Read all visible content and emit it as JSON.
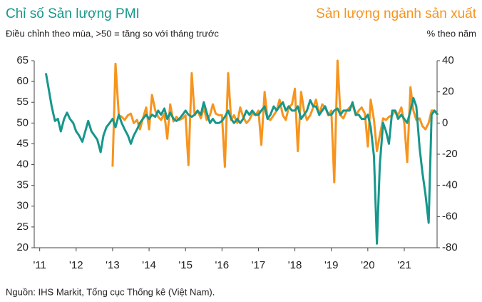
{
  "chart_data": {
    "type": "line",
    "title": "Chỉ số Sản lượng PMI",
    "subtitle": "Điều chỉnh theo mùa, >50 = tăng so với tháng trước",
    "y2_title": "Sản lượng ngành sản xuất",
    "y2_label": "% theo năm",
    "source": "Nguồn: IHS Markit, Tổng cục Thống kê (Việt Nam).",
    "x": [
      2011.17,
      2011.25,
      2011.33,
      2011.42,
      2011.5,
      2011.58,
      2011.67,
      2011.75,
      2011.83,
      2011.92,
      2012,
      2012.08,
      2012.17,
      2012.25,
      2012.33,
      2012.42,
      2012.5,
      2012.58,
      2012.67,
      2012.75,
      2012.83,
      2012.92,
      2013,
      2013.08,
      2013.17,
      2013.25,
      2013.33,
      2013.42,
      2013.5,
      2013.58,
      2013.67,
      2013.75,
      2013.83,
      2013.92,
      2014,
      2014.08,
      2014.17,
      2014.25,
      2014.33,
      2014.42,
      2014.5,
      2014.58,
      2014.67,
      2014.75,
      2014.83,
      2014.92,
      2015,
      2015.08,
      2015.17,
      2015.25,
      2015.33,
      2015.42,
      2015.5,
      2015.58,
      2015.67,
      2015.75,
      2015.83,
      2015.92,
      2016,
      2016.08,
      2016.17,
      2016.25,
      2016.33,
      2016.42,
      2016.5,
      2016.58,
      2016.67,
      2016.75,
      2016.83,
      2016.92,
      2017,
      2017.08,
      2017.17,
      2017.25,
      2017.33,
      2017.42,
      2017.5,
      2017.58,
      2017.67,
      2017.75,
      2017.83,
      2017.92,
      2018,
      2018.08,
      2018.17,
      2018.25,
      2018.33,
      2018.42,
      2018.5,
      2018.58,
      2018.67,
      2018.75,
      2018.83,
      2018.92,
      2019,
      2019.08,
      2019.17,
      2019.25,
      2019.33,
      2019.42,
      2019.5,
      2019.58,
      2019.67,
      2019.75,
      2019.83,
      2019.92,
      2020,
      2020.08,
      2020.17,
      2020.25,
      2020.33,
      2020.42,
      2020.5,
      2020.58,
      2020.67,
      2020.75,
      2020.83,
      2020.92,
      2021,
      2021.08,
      2021.17,
      2021.25,
      2021.33,
      2021.42,
      2021.5,
      2021.58,
      2021.67,
      2021.75,
      2021.83,
      2021.92
    ],
    "series": [
      {
        "name": "Chỉ số Sản lượng PMI",
        "color": "#17978b",
        "axis": "y",
        "values": [
          62,
          58,
          54,
          50.5,
          51,
          48,
          51,
          52.5,
          51,
          50,
          48,
          47,
          45.5,
          48,
          50.5,
          48,
          47,
          46,
          43,
          47,
          49,
          50,
          51,
          49,
          52,
          50,
          48.5,
          47,
          45,
          47,
          48.5,
          50,
          51,
          52,
          51,
          52,
          51.5,
          53,
          52,
          53.5,
          51,
          52.5,
          51,
          50.5,
          51,
          52,
          53,
          52,
          51.5,
          52,
          53,
          52,
          55,
          52.5,
          50,
          51,
          50,
          50,
          50.5,
          51.5,
          53,
          51,
          50,
          51,
          50,
          51,
          53,
          52,
          53,
          52,
          52,
          53,
          54,
          51,
          52,
          54,
          53,
          54,
          55,
          53,
          54,
          53,
          53,
          54,
          51,
          52,
          53,
          55.5,
          54,
          54,
          52,
          53,
          54,
          52,
          52,
          53,
          53.5,
          52,
          53,
          53,
          53,
          55,
          52,
          52,
          51,
          51,
          52,
          49,
          42,
          21,
          40,
          50,
          48,
          45,
          53,
          53,
          51,
          52,
          51,
          50,
          53,
          56,
          54,
          44,
          38,
          33,
          26,
          52,
          53,
          52
        ]
      },
      {
        "name": "Sản lượng ngành sản xuất",
        "color": "#f7941d",
        "axis": "y2",
        "values": [
          null,
          null,
          null,
          null,
          null,
          null,
          null,
          null,
          null,
          null,
          null,
          null,
          null,
          null,
          null,
          null,
          null,
          null,
          null,
          null,
          null,
          null,
          -28,
          38,
          5,
          4,
          2,
          5,
          6,
          0,
          2,
          -4,
          3,
          10,
          -4,
          18,
          8,
          4,
          2,
          6,
          -10,
          12,
          1,
          4,
          2,
          3,
          5,
          -27,
          32,
          5,
          8,
          3,
          10,
          2,
          5,
          12,
          6,
          5,
          5,
          -28,
          32,
          2,
          5,
          0,
          10,
          4,
          0,
          2,
          6,
          5,
          8,
          -14,
          20,
          3,
          2,
          5,
          8,
          15,
          5,
          2,
          10,
          12,
          22,
          -18,
          20,
          8,
          2,
          5,
          10,
          15,
          5,
          12,
          10,
          5,
          8,
          -38,
          40,
          5,
          3,
          8,
          10,
          12,
          5,
          8,
          10,
          6,
          -15,
          15,
          2,
          -18,
          -8,
          3,
          2,
          4,
          5,
          8,
          5,
          10,
          0,
          -25,
          23,
          8,
          2,
          3,
          -2,
          -4,
          0,
          8,
          8,
          5
        ]
      }
    ],
    "xlim": [
      2010.85,
      2021.9
    ],
    "xticks": [
      {
        "value": 2011,
        "label": "'11"
      },
      {
        "value": 2012,
        "label": "'12"
      },
      {
        "value": 2013,
        "label": "'13"
      },
      {
        "value": 2014,
        "label": "'14"
      },
      {
        "value": 2015,
        "label": "'15"
      },
      {
        "value": 2016,
        "label": "'16"
      },
      {
        "value": 2017,
        "label": "'17"
      },
      {
        "value": 2018,
        "label": "'18"
      },
      {
        "value": 2019,
        "label": "'19"
      },
      {
        "value": 2020,
        "label": "'20"
      },
      {
        "value": 2021,
        "label": "'21"
      }
    ],
    "ylim": [
      20,
      65
    ],
    "yticks": [
      20,
      25,
      30,
      35,
      40,
      45,
      50,
      55,
      60,
      65
    ],
    "y2lim": [
      -80,
      40
    ],
    "y2ticks": [
      -80,
      -60,
      -40,
      -20,
      0,
      20,
      40
    ],
    "grid": false
  }
}
